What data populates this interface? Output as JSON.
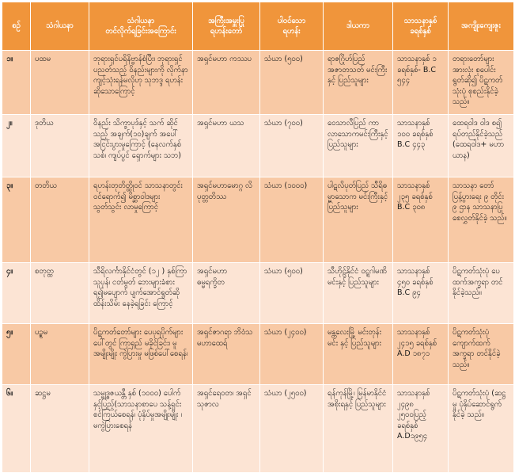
{
  "headers": [
    "စဉ်",
    "သံဂါယနာ",
    "သံဂါယနာ\nတင်လိုက်ရခြင်းအကြောင်း",
    "အကြီးအမှူးပြု\nရဟန်းတော်",
    "ပါဝင်သော\nရဟန်း",
    "ဒါယကာ",
    "သာသနာနှစ်\nခရစ်နှစ်",
    "အကျိုးကျေးဇူး"
  ],
  "rows": [
    {
      "num": "၁။",
      "name": "ပထမ",
      "reason": "ဘုရားရှင်ပရိနိဗ္ဗာန်စံပြီး၊ ဘုရားရှင်ပညတ်သည့် ဝိနည်းများကို လိုက်နာ ကျင့်သုံးရန်မလိုဟု သုဘဒ္ဒ ရဟန်းဆိုသောကြောင့်",
      "presiding": "အရှင်မဟာ ကဿပ",
      "monks": "သံဃာ (၅၀၀)",
      "donor": "ရာဇဂြိုဟ်ပြည် အဇာတသတ် မင်းကြီးနှင့် ပြည်သူများ",
      "year": "သာသနာနှစ် ၁ ခရစ်နှစ်- B.C ၅၄၄",
      "benefit": "တရားတော်များ အားလုံး စုပေါင်း ရွတ်ဆို၍ ပိဋကတ်သုံးပုံ စုစည်းနိုင်ခဲ့ သည်။"
    },
    {
      "num": "၂။",
      "name": "ဒုတိယ",
      "reason": "ဝိနည်း သိက္ခာပုဒ်နှင့် သက် ဆိုင်သည့် အချက်(၁၀)ချက် အပေါ် အငြင်းပွားမှုကြောင့် (နေလက်နှစ်သစ်၊ ကျပ်ပွင် ရှောက်များ သဘ)",
      "presiding": "အရှင်မဟာ ယသ",
      "monks": "သံဃာ (၇၀၀)",
      "donor": "ဝေသာလီပြည် ကာလာသောကမင်းကြီးနှင့် ပြည်သူများ",
      "year": "သာသနာနှစ် ၁၀၀ ခရစ်နှစ် B.C ၄၄၃",
      "benefit": "ထေရဝါဒ ဝါဒ စ၍ ရပ်တည်နိုင်ခဲ့သည် (ထေရဝါဒ+ မဟာယာန)"
    },
    {
      "num": "၃။",
      "name": "တတိယ",
      "reason": "ရဟန်းတုတိတ္ထိုဝင် သာသနာတွင်းဝင်ရောက်၍ မိစ္ဆာဝါဒများ သွတ်သွင်း လာမှုကြောင့်",
      "presiding": "အရှင်မဟာမောဂ္ဂ လိပုတ္တတိဿ",
      "monks": "သံဃာ (၁၀၀၀)",
      "donor": "ပါဋလိပုတ်ပြည် သီရိဓမ္မာသောက မင်းကြီးနှင့် ပြည်သူများ",
      "year": "သာသနာနှစ် ၂၃၅ ခရစ်နှစ် B.C ၃၀၈",
      "benefit": "သာသနာ တော်ပြန့်ပွားရေး ၉ တိုင်း ၉ ဌာန သာသနာပြု စေလွှတ်နိုင်ခဲ့ သည်။"
    },
    {
      "num": "၄။",
      "name": "စတုတ္ထ",
      "reason": "သီရိလင်္ကာနိုင်ငံတွင် (၁၂ ) နှစ်ကြာ သူပုန်၊ ငတ်မွတ် ဘေးများခံစားရ၍မပျောက် ပျက်အောင်ရွတ်ဆိုထိန်းသိမ်း နေခဲ့ရခြင်း ကြောင့်",
      "presiding": "အရှင်မဟာ ဓမ္မရက္ခိတ",
      "monks": "သံဃာ (၅၀၀)",
      "donor": "သီဟိုဠ်နိုင်ငံ ဝဋ္ဋဂါမဏိ မင်းနှင့် ပြည်သူများ",
      "year": "သာသနာနှစ် ၄၅၀ ခရစ်နှစ် B.C ၉၄",
      "benefit": "ပိဋကတ်သုံးပုံ ပေထက်အက္ခရာ တင်နိုင်ခဲ့သည်။"
    },
    {
      "num": "၅။",
      "name": "ပဉ္စမ",
      "reason": "ပိဋကတ်တော်များ ပေပုရပိုက်များပေါ်တွင် ကြာရှည် မခိုင်ခြင်း၊ မူအမျိုးမျိုး ကွဲပြားမှု မဖြစ်ပေါ်စေရန်၊",
      "presiding": "အရှင်ဇာဂရာ ဘိဝံသ မဟာထေရ်",
      "monks": "သံဃာ (၂၄၀၀)",
      "donor": "မန္တလေးမြို့ မင်းတုန်းမင်း နှင့် ပြည်သူများ",
      "year": "သာသနာနှစ် ၂၄၁၅ ခရစ်နှစ် A.D ၁၈၇၁",
      "benefit": "ပိဋကတ်သုံးပုံ ကျောက်ထက် အက္ခရာ တင်နိုင်ခဲ့သည်။"
    },
    {
      "num": "၆။",
      "name": "ဆဋ္ဌမ",
      "reason": "သမ္ဗုဒ္ဓဇယန္တီ နှစ် (၁၀၀၀) ပေါက်နှင့်ပြည့်(သာသနာစာပေ သန့်ရှင်းစင်ကြယ်စေရန်၊ ပုံနှိပ်မှုအမျိုးမျိုး ၊ မကွဲပြားစေရန်",
      "presiding": "အရှင်ရေဝတ၊ အရှင်သုဇာလ",
      "monks": "သံဃာ (၂၅၀၀)",
      "donor": "ရန်ကုန်မြို့၊ မြန်မာနိုင်ငံ အစိုးရနှင့် ပြည်သူများ",
      "year": "သာသနာနှစ် ၂၄၉၈ ၂၅၀၀ပြည့် ခရစ်နှစ် A.D၁၉၅၄",
      "benefit": "ပိဋကတ်သုံးပုံ (ဆဋ္ဌမူ ပုံနှိပ်ဆောင်ရွက်နိုင်ခဲ့ သည်။"
    }
  ],
  "colors": {
    "header": "#f0953b",
    "row_odd": "#f8c9a5",
    "row_even": "#fce4d4",
    "border": "#ffffff"
  }
}
